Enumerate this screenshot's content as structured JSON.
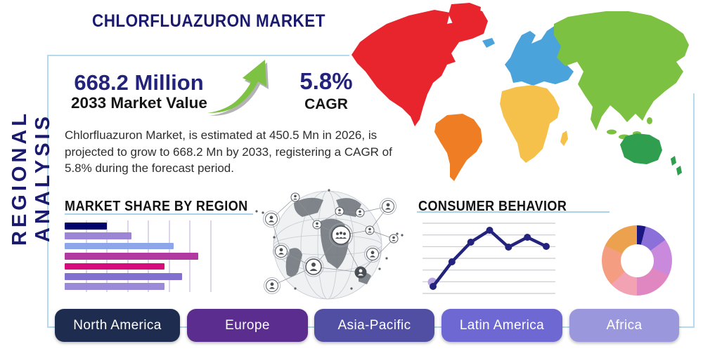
{
  "header": {
    "title": "CHLORFLUAZURON MARKET",
    "side_label": "REGIONAL ANALYSIS"
  },
  "highlight": {
    "market_value": "668.2 Million",
    "market_value_caption": "2033 Market Value",
    "cagr_value": "5.8%",
    "cagr_caption": "CAGR",
    "arrow_color": "#7dc242",
    "arrow_shadow": "#9a9a9a"
  },
  "description": "Chlorfluazuron Market, is estimated at 450.5 Mn in 2026, is projected to grow to 668.2 Mn by 2033, registering a CAGR of 5.8% during the forecast period.",
  "sections": {
    "market_share_title": "MARKET SHARE BY REGION",
    "consumer_title": "CONSUMER BEHAVIOR"
  },
  "region_buttons": [
    {
      "label": "North America",
      "color": "#1e2c50"
    },
    {
      "label": "Europe",
      "color": "#5a2d8f"
    },
    {
      "label": "Asia-Pacific",
      "color": "#514fa3"
    },
    {
      "label": "Latin America",
      "color": "#6e69d2"
    },
    {
      "label": "Africa",
      "color": "#9b97dd"
    }
  ],
  "map": {
    "continents": [
      {
        "name": "north-america",
        "color": "#e8242d"
      },
      {
        "name": "greenland",
        "color": "#e8242d"
      },
      {
        "name": "south-america",
        "color": "#ee7d23"
      },
      {
        "name": "europe",
        "color": "#4aa3db"
      },
      {
        "name": "iceland",
        "color": "#4aa3db"
      },
      {
        "name": "africa",
        "color": "#f6c14b"
      },
      {
        "name": "madagascar",
        "color": "#f6c14b"
      },
      {
        "name": "asia",
        "color": "#7cc142"
      },
      {
        "name": "australia",
        "color": "#2f9e4f"
      }
    ]
  },
  "chart_data": [
    {
      "type": "bar",
      "title": "MARKET SHARE BY REGION",
      "orientation": "horizontal",
      "categories": [
        "",
        "",
        "",
        "",
        "",
        "",
        ""
      ],
      "values": [
        29,
        46,
        75,
        92,
        69,
        81,
        69
      ],
      "xlim": [
        0,
        100
      ],
      "gridlines": 7,
      "grid_color": "#dcd5ec",
      "colors": [
        "#02026b",
        "#9c85d5",
        "#8ca6e9",
        "#b13aa1",
        "#d60c7c",
        "#8270ce",
        "#9b8ad8"
      ]
    },
    {
      "type": "line",
      "title": "CONSUMER BEHAVIOR",
      "x": [
        1,
        2,
        3,
        4,
        5,
        6,
        7
      ],
      "values": [
        10,
        45,
        73,
        90,
        66,
        80,
        67
      ],
      "ylim": [
        0,
        100
      ],
      "gridlines": 7,
      "grid_color": "#c9c9ce",
      "line_color": "#23237e",
      "first_point_halo": "#b7a4e3"
    },
    {
      "type": "pie",
      "donut": true,
      "slices": [
        {
          "value": 4,
          "color": "#191883"
        },
        {
          "value": 11,
          "color": "#8a70d8"
        },
        {
          "value": 17,
          "color": "#c98ade"
        },
        {
          "value": 18,
          "color": "#e087c1"
        },
        {
          "value": 13,
          "color": "#f2a2b2"
        },
        {
          "value": 19,
          "color": "#f49d80"
        },
        {
          "value": 18,
          "color": "#eba14e"
        }
      ]
    }
  ],
  "colors": {
    "accent_navy": "#1a1a6e",
    "stat_navy": "#23237c",
    "panel_border": "#b3daee",
    "heading_underline": "#a9d3e8"
  }
}
